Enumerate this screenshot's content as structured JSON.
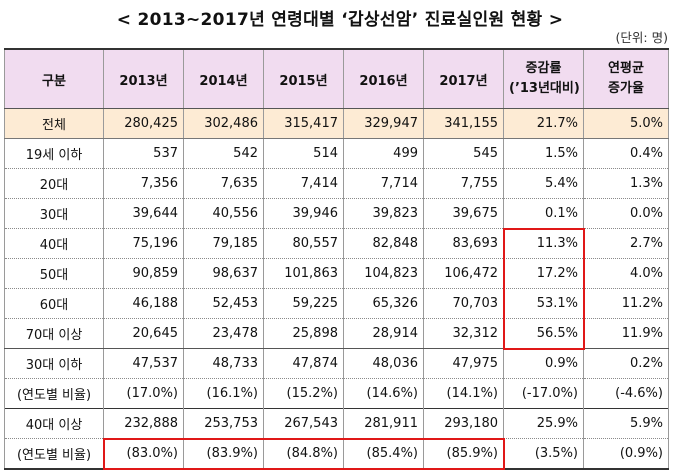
{
  "title": "< 2013~2017년 연령대별 ‘갑상선암’ 진료실인원 현황 >",
  "unit": "(단위: 명)",
  "headers": {
    "category": "구분",
    "y2013": "2013년",
    "y2014": "2014년",
    "y2015": "2015년",
    "y2016": "2016년",
    "y2017": "2017년",
    "growth_line1": "증감률",
    "growth_line2": "(’13년대비)",
    "annual_line1": "연평균",
    "annual_line2": "증가율"
  },
  "rows": [
    {
      "label": "전체",
      "v": [
        "280,425",
        "302,486",
        "315,417",
        "329,947",
        "341,155"
      ],
      "growth": "21.7%",
      "annual": "5.0%"
    },
    {
      "label": "19세 이하",
      "v": [
        "537",
        "542",
        "514",
        "499",
        "545"
      ],
      "growth": "1.5%",
      "annual": "0.4%"
    },
    {
      "label": "20대",
      "v": [
        "7,356",
        "7,635",
        "7,414",
        "7,714",
        "7,755"
      ],
      "growth": "5.4%",
      "annual": "1.3%"
    },
    {
      "label": "30대",
      "v": [
        "39,644",
        "40,556",
        "39,946",
        "39,823",
        "39,675"
      ],
      "growth": "0.1%",
      "annual": "0.0%"
    },
    {
      "label": "40대",
      "v": [
        "75,196",
        "79,185",
        "80,557",
        "82,848",
        "83,693"
      ],
      "growth": "11.3%",
      "annual": "2.7%"
    },
    {
      "label": "50대",
      "v": [
        "90,859",
        "98,637",
        "101,863",
        "104,823",
        "106,472"
      ],
      "growth": "17.2%",
      "annual": "4.0%"
    },
    {
      "label": "60대",
      "v": [
        "46,188",
        "52,453",
        "59,225",
        "65,326",
        "70,703"
      ],
      "growth": "53.1%",
      "annual": "11.2%"
    },
    {
      "label": "70대 이상",
      "v": [
        "20,645",
        "23,478",
        "25,898",
        "28,914",
        "32,312"
      ],
      "growth": "56.5%",
      "annual": "11.9%"
    },
    {
      "label": "30대 이하",
      "v": [
        "47,537",
        "48,733",
        "47,874",
        "48,036",
        "47,975"
      ],
      "growth": "0.9%",
      "annual": "0.2%"
    },
    {
      "label": "(연도별 비율)",
      "v": [
        "(17.0%)",
        "(16.1%)",
        "(15.2%)",
        "(14.6%)",
        "(14.1%)"
      ],
      "growth": "(-17.0%)",
      "annual": "(-4.6%)"
    },
    {
      "label": "40대 이상",
      "v": [
        "232,888",
        "253,753",
        "267,543",
        "281,911",
        "293,180"
      ],
      "growth": "25.9%",
      "annual": "5.9%"
    },
    {
      "label": "(연도별 비율)",
      "v": [
        "(83.0%)",
        "(83.9%)",
        "(84.8%)",
        "(85.4%)",
        "(85.9%)"
      ],
      "growth": "(3.5%)",
      "annual": "(0.9%)"
    }
  ],
  "highlight_color": "#e01818"
}
